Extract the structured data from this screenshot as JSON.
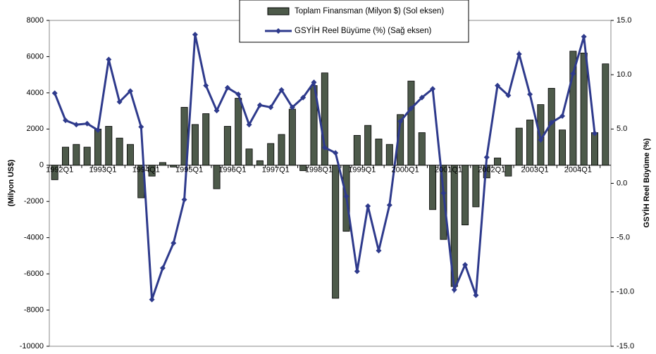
{
  "chart_data": {
    "type": "bar-line",
    "y_label": "(Milyon US$)",
    "y2_label": "GSYİH Reel Büyüme (%)",
    "legend": "top-center",
    "categories": [
      "1992Q1",
      null,
      null,
      null,
      "1993Q1",
      null,
      null,
      null,
      "1994Q1",
      null,
      null,
      null,
      "1995Q1",
      null,
      null,
      null,
      "1996Q1",
      null,
      null,
      null,
      "1997Q1",
      null,
      null,
      null,
      "1998Q1",
      null,
      null,
      null,
      "1999Q1",
      null,
      null,
      null,
      "2000Q1",
      null,
      null,
      null,
      "2001Q1",
      null,
      null,
      null,
      "2002Q1",
      null,
      null,
      null,
      "2003Q1",
      null,
      null,
      null,
      "2004Q1",
      null,
      null,
      null
    ],
    "series": [
      {
        "name": "Toplam Finansman (Milyon $) (Sol eksen)",
        "type": "bar",
        "color": "#4d5a4a",
        "values": [
          -800,
          1000,
          1150,
          1000,
          2000,
          2150,
          1500,
          1150,
          -1800,
          -600,
          150,
          -100,
          3200,
          2250,
          2850,
          -1300,
          2150,
          3700,
          900,
          250,
          1200,
          1700,
          3100,
          -300,
          4400,
          5100,
          -7350,
          -3650,
          1650,
          2200,
          1450,
          1150,
          2800,
          4650,
          1800,
          -2450,
          -4100,
          -6700,
          -3300,
          -2300,
          -700,
          400,
          -600,
          2050,
          2500,
          3350,
          4250,
          1950,
          6300,
          6200,
          1800,
          5600
        ]
      },
      {
        "name": "GSYİH Reel Büyüme (%) (Sağ eksen)",
        "type": "line",
        "axis": "y2",
        "color": "#2e3a8c",
        "values": [
          8.3,
          5.8,
          5.4,
          5.5,
          4.9,
          11.4,
          7.5,
          8.5,
          5.2,
          -10.7,
          -7.8,
          -5.5,
          -1.5,
          13.7,
          9.0,
          6.7,
          8.8,
          8.2,
          5.4,
          7.2,
          7.0,
          8.6,
          7.0,
          7.9,
          9.3,
          3.3,
          2.8,
          -1.2,
          -8.1,
          -2.1,
          -6.2,
          -2.0,
          5.7,
          6.9,
          7.9,
          8.7,
          -0.9,
          -9.8,
          -7.5,
          -10.3,
          2.4,
          9.0,
          8.1,
          11.9,
          8.2,
          4.0,
          5.6,
          6.2,
          10.1,
          13.5,
          4.6,
          null
        ]
      }
    ],
    "ylim": [
      -10000,
      8000
    ],
    "yticks": [
      -10000,
      -8000,
      -6000,
      -4000,
      -2000,
      0,
      2000,
      4000,
      6000,
      8000
    ],
    "y2lim": [
      -15,
      15
    ],
    "y2ticks": [
      {
        "value": -15,
        "label": "-15.0"
      },
      {
        "value": -10,
        "label": "-10.0"
      },
      {
        "value": -5,
        "label": "-5.0"
      },
      {
        "value": 0,
        "label": "0.0"
      },
      {
        "value": 5,
        "label": "5.0"
      },
      {
        "value": 10,
        "label": "10.0"
      },
      {
        "value": 15,
        "label": "15.0"
      }
    ]
  }
}
